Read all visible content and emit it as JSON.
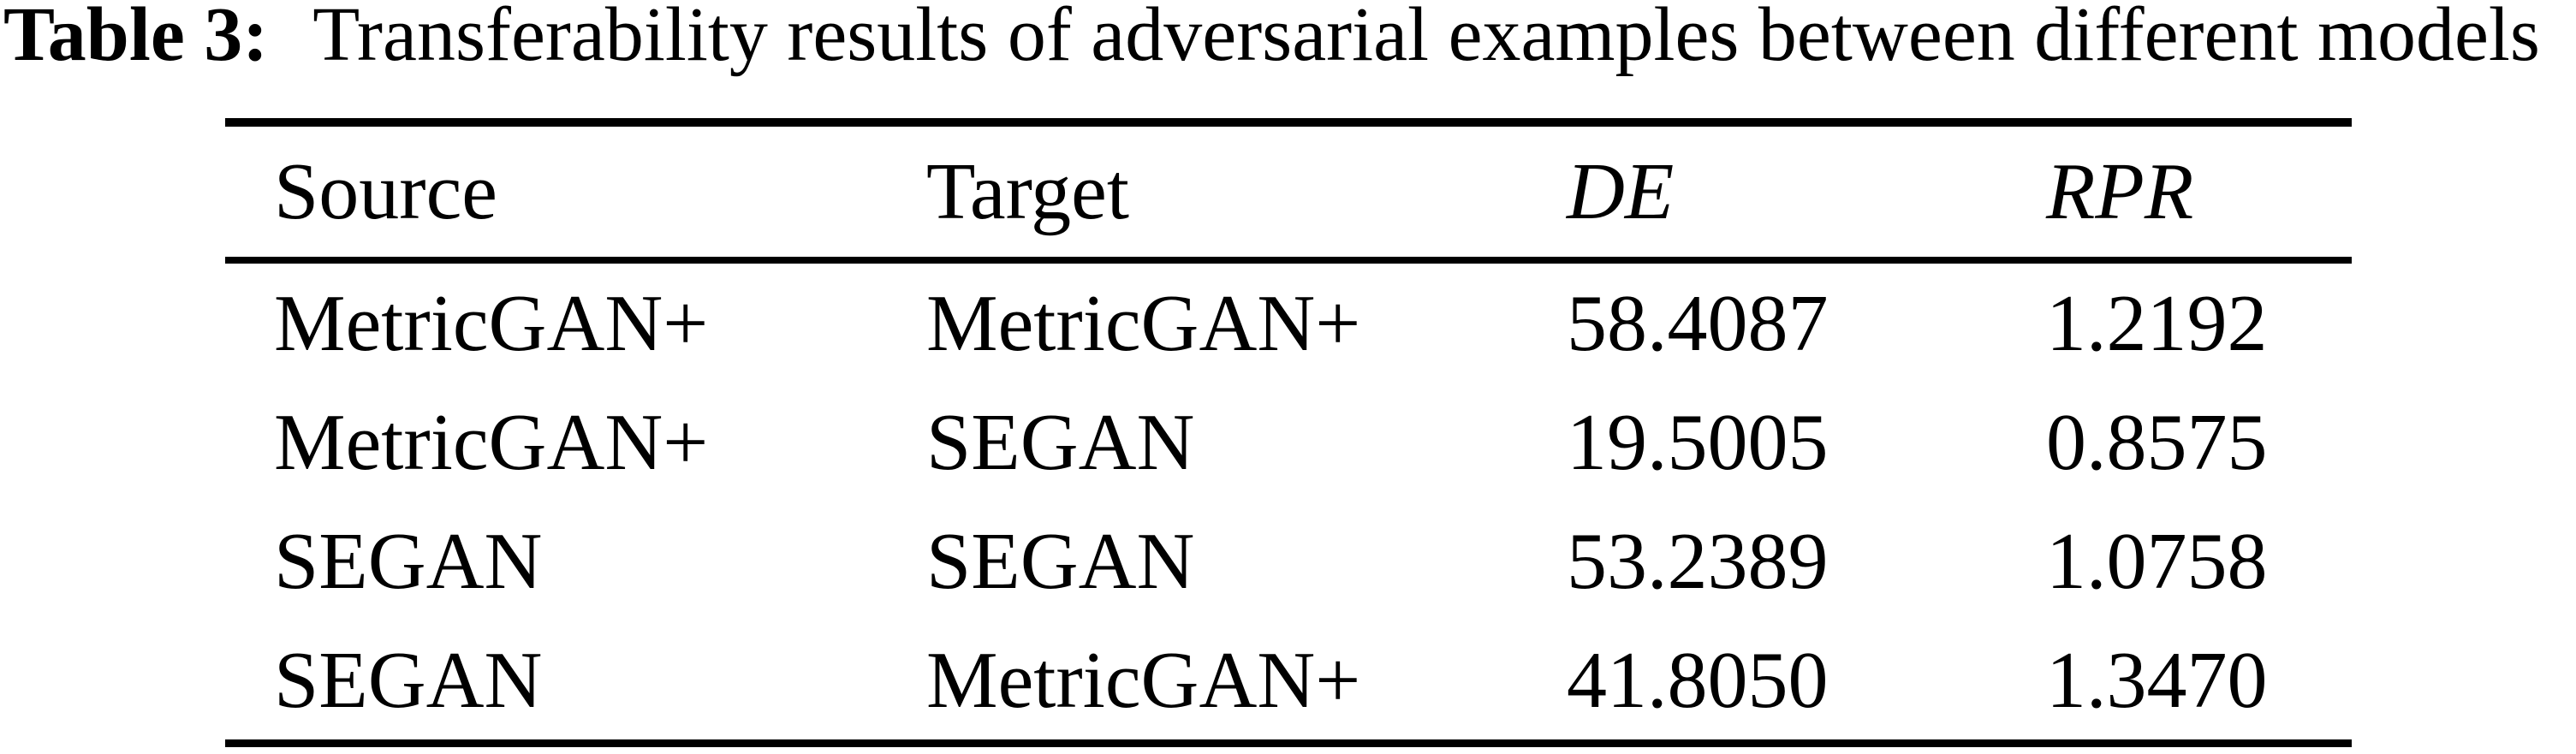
{
  "caption": {
    "label": "Table 3:",
    "text": "Transferability results of adversarial examples between different models"
  },
  "table": {
    "columns": [
      "Source",
      "Target",
      "DE",
      "RPR"
    ],
    "rows": [
      {
        "source": "MetricGAN+",
        "target": "MetricGAN+",
        "de": "58.4087",
        "rpr": "1.2192"
      },
      {
        "source": "MetricGAN+",
        "target": "SEGAN",
        "de": "19.5005",
        "rpr": "0.8575"
      },
      {
        "source": "SEGAN",
        "target": "SEGAN",
        "de": "53.2389",
        "rpr": "1.0758"
      },
      {
        "source": "SEGAN",
        "target": "MetricGAN+",
        "de": "41.8050",
        "rpr": "1.3470"
      }
    ]
  },
  "chart_data": {
    "type": "table",
    "title": "Table 3: Transferability results of adversarial examples between different models",
    "columns": [
      "Source",
      "Target",
      "DE",
      "RPR"
    ],
    "rows": [
      [
        "MetricGAN+",
        "MetricGAN+",
        58.4087,
        1.2192
      ],
      [
        "MetricGAN+",
        "SEGAN",
        19.5005,
        0.8575
      ],
      [
        "SEGAN",
        "SEGAN",
        53.2389,
        1.0758
      ],
      [
        "SEGAN",
        "MetricGAN+",
        41.805,
        1.347
      ]
    ]
  },
  "colors": {
    "text": "#000000",
    "background": "#ffffff",
    "rule": "#000000"
  }
}
